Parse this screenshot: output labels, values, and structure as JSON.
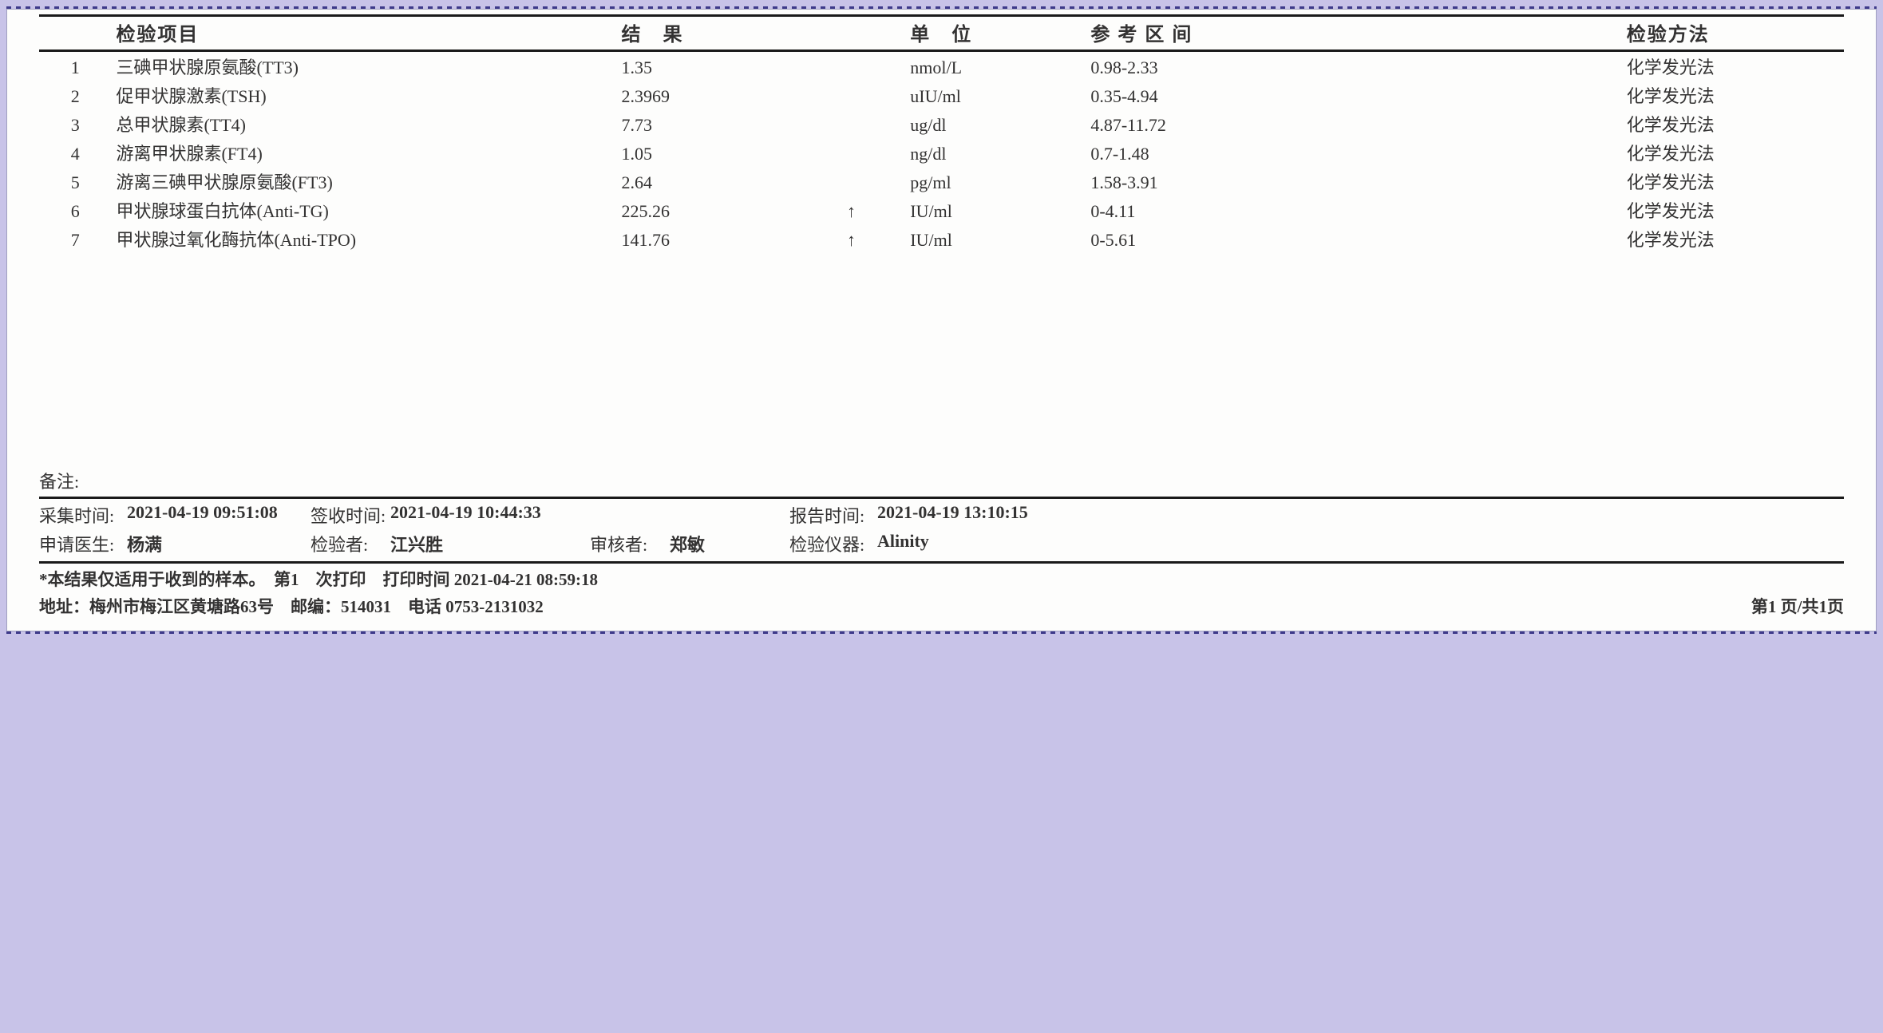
{
  "headers": {
    "item": "检验项目",
    "result": "结　果",
    "unit": "单　位",
    "ref": "参 考 区 间",
    "method": "检验方法"
  },
  "rows": [
    {
      "idx": "1",
      "name": "三碘甲状腺原氨酸(TT3)",
      "value": "1.35",
      "flag": "",
      "unit": "nmol/L",
      "ref": "0.98-2.33",
      "method": "化学发光法"
    },
    {
      "idx": "2",
      "name": "促甲状腺激素(TSH)",
      "value": "2.3969",
      "flag": "",
      "unit": "uIU/ml",
      "ref": "0.35-4.94",
      "method": "化学发光法"
    },
    {
      "idx": "3",
      "name": "总甲状腺素(TT4)",
      "value": "7.73",
      "flag": "",
      "unit": "ug/dl",
      "ref": "4.87-11.72",
      "method": "化学发光法"
    },
    {
      "idx": "4",
      "name": "游离甲状腺素(FT4)",
      "value": "1.05",
      "flag": "",
      "unit": "ng/dl",
      "ref": "0.7-1.48",
      "method": "化学发光法"
    },
    {
      "idx": "5",
      "name": "游离三碘甲状腺原氨酸(FT3)",
      "value": "2.64",
      "flag": "",
      "unit": "pg/ml",
      "ref": "1.58-3.91",
      "method": "化学发光法"
    },
    {
      "idx": "6",
      "name": "甲状腺球蛋白抗体(Anti-TG)",
      "value": "225.26",
      "flag": "↑",
      "unit": "IU/ml",
      "ref": "0-4.11",
      "method": "化学发光法"
    },
    {
      "idx": "7",
      "name": "甲状腺过氧化酶抗体(Anti-TPO)",
      "value": "141.76",
      "flag": "↑",
      "unit": "IU/ml",
      "ref": "0-5.61",
      "method": "化学发光法"
    }
  ],
  "remark_label": "备注:",
  "meta": {
    "collect_label": "采集时间:",
    "collect_val": "2021-04-19 09:51:08",
    "sign_label": "签收时间:",
    "sign_val": "2021-04-19 10:44:33",
    "report_label": "报告时间:",
    "report_val": "2021-04-19 13:10:15",
    "reqdoc_label": "申请医生:",
    "reqdoc_val": "杨满",
    "tester_label": "检验者:",
    "tester_val": "江兴胜",
    "review_label": "审核者:",
    "review_val": "郑敏",
    "instr_label": "检验仪器:",
    "instr_val": "Alinity"
  },
  "footer": {
    "note": "*本结果仅适用于收到的样本。　第1　次打印　打印时间 2021-04-21 08:59:18",
    "address": "地址：梅州市梅江区黄塘路63号　邮编：514031　电话 0753-2131032",
    "page": "第1 页/共1页"
  }
}
